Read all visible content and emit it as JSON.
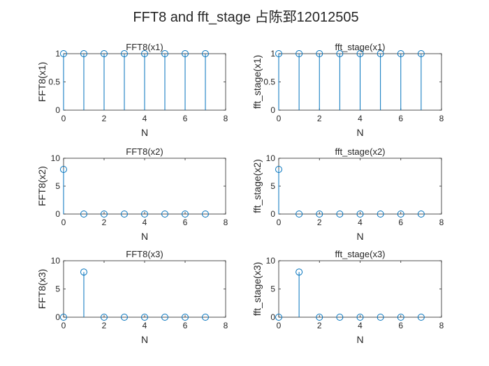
{
  "figure": {
    "title": "FFT8 and fft_stage 占陈郅12012505",
    "stem_color": "#0072bd",
    "axis_color": "#262626"
  },
  "chart_data": [
    {
      "type": "stem",
      "title": "FFT8(x1)",
      "xlabel": "N",
      "ylabel": "FFT8(x1)",
      "xlim": [
        0,
        8
      ],
      "ylim": [
        0,
        1
      ],
      "xticks": [
        0,
        2,
        4,
        6,
        8
      ],
      "yticks": [
        0,
        0.5,
        1
      ],
      "ytick_labels": [
        "0",
        "0.5",
        "1"
      ],
      "x": [
        0,
        1,
        2,
        3,
        4,
        5,
        6,
        7
      ],
      "y": [
        1,
        1,
        1,
        1,
        1,
        1,
        1,
        1
      ]
    },
    {
      "type": "stem",
      "title": "fft_stage(x1)",
      "xlabel": "N",
      "ylabel": "fft_stage(x1)",
      "xlim": [
        0,
        8
      ],
      "ylim": [
        0,
        1
      ],
      "xticks": [
        0,
        2,
        4,
        6,
        8
      ],
      "yticks": [
        0,
        0.5,
        1
      ],
      "ytick_labels": [
        "0",
        "0.5",
        "1"
      ],
      "x": [
        0,
        1,
        2,
        3,
        4,
        5,
        6,
        7
      ],
      "y": [
        1,
        1,
        1,
        1,
        1,
        1,
        1,
        1
      ]
    },
    {
      "type": "stem",
      "title": "FFT8(x2)",
      "xlabel": "N",
      "ylabel": "FFT8(x2)",
      "xlim": [
        0,
        8
      ],
      "ylim": [
        0,
        10
      ],
      "xticks": [
        0,
        2,
        4,
        6,
        8
      ],
      "yticks": [
        0,
        5,
        10
      ],
      "ytick_labels": [
        "0",
        "5",
        "10"
      ],
      "x": [
        0,
        1,
        2,
        3,
        4,
        5,
        6,
        7
      ],
      "y": [
        8,
        0,
        0,
        0,
        0,
        0,
        0,
        0
      ]
    },
    {
      "type": "stem",
      "title": "fft_stage(x2)",
      "xlabel": "N",
      "ylabel": "fft_stage(x2)",
      "xlim": [
        0,
        8
      ],
      "ylim": [
        0,
        10
      ],
      "xticks": [
        0,
        2,
        4,
        6,
        8
      ],
      "yticks": [
        0,
        5,
        10
      ],
      "ytick_labels": [
        "0",
        "5",
        "10"
      ],
      "x": [
        0,
        1,
        2,
        3,
        4,
        5,
        6,
        7
      ],
      "y": [
        8,
        0,
        0,
        0,
        0,
        0,
        0,
        0
      ]
    },
    {
      "type": "stem",
      "title": "FFT8(x3)",
      "xlabel": "N",
      "ylabel": "FFT8(x3)",
      "xlim": [
        0,
        8
      ],
      "ylim": [
        0,
        10
      ],
      "xticks": [
        0,
        2,
        4,
        6,
        8
      ],
      "yticks": [
        0,
        5,
        10
      ],
      "ytick_labels": [
        "0",
        "5",
        "10"
      ],
      "x": [
        0,
        1,
        2,
        3,
        4,
        5,
        6,
        7
      ],
      "y": [
        0,
        8,
        0,
        0,
        0,
        0,
        0,
        0
      ]
    },
    {
      "type": "stem",
      "title": "fft_stage(x3)",
      "xlabel": "N",
      "ylabel": "fft_stage(x3)",
      "xlim": [
        0,
        8
      ],
      "ylim": [
        0,
        10
      ],
      "xticks": [
        0,
        2,
        4,
        6,
        8
      ],
      "yticks": [
        0,
        5,
        10
      ],
      "ytick_labels": [
        "0",
        "5",
        "10"
      ],
      "x": [
        0,
        1,
        2,
        3,
        4,
        5,
        6,
        7
      ],
      "y": [
        0,
        8,
        0,
        0,
        0,
        0,
        0,
        0
      ]
    }
  ]
}
